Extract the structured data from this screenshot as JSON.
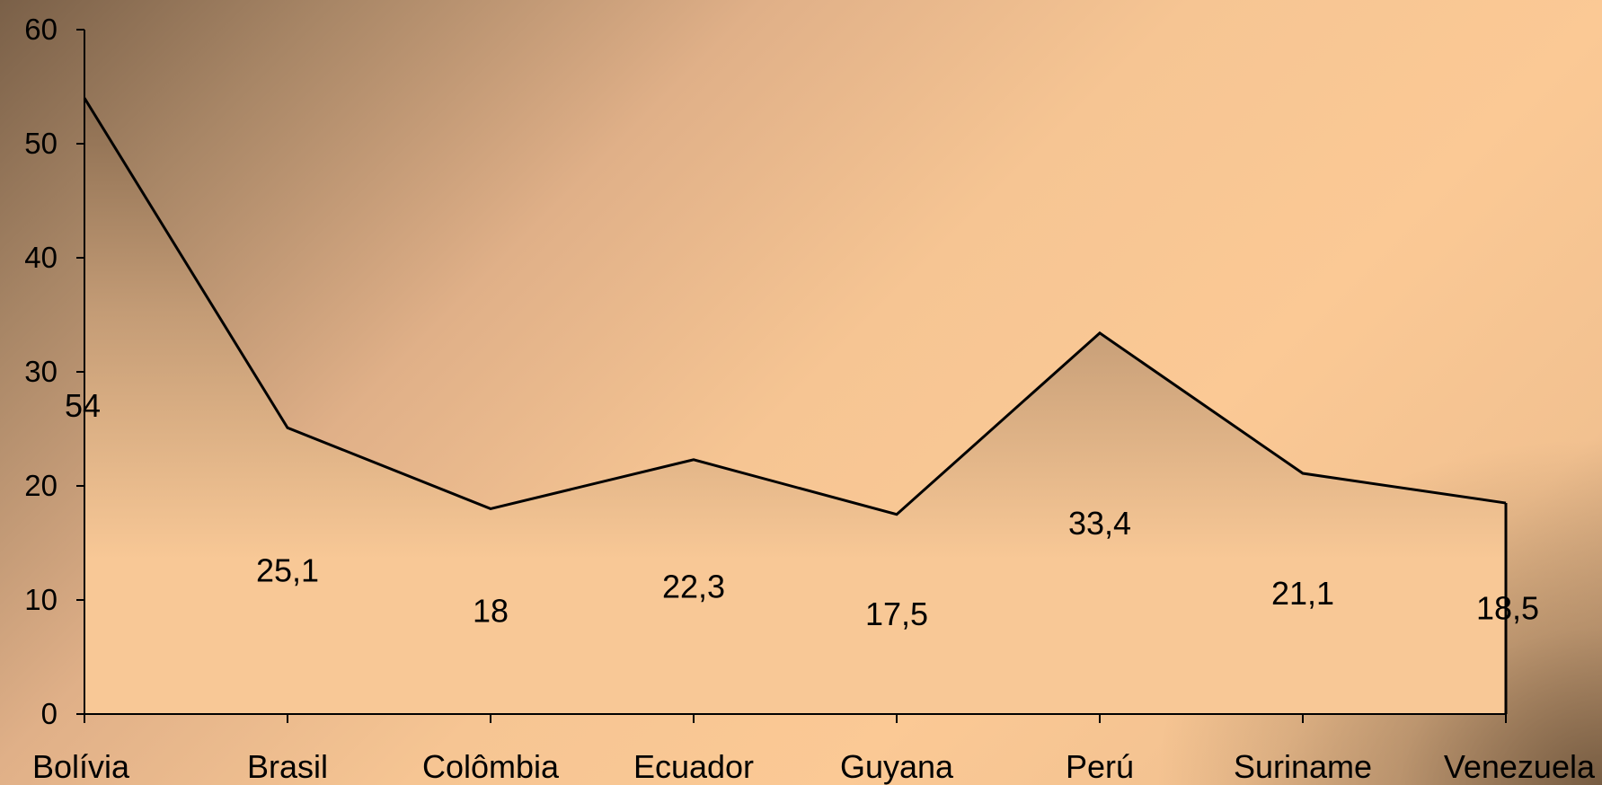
{
  "chart_data": {
    "type": "area",
    "categories": [
      "Bolívia",
      "Brasil",
      "Colômbia",
      "Ecuador",
      "Guyana",
      "Perú",
      "Suriname",
      "Venezuela"
    ],
    "values": [
      54,
      25.1,
      18,
      22.3,
      17.5,
      33.4,
      21.1,
      18.5
    ],
    "value_labels": [
      "54",
      "25,1",
      "18",
      "22,3",
      "17,5",
      "33,4",
      "21,1",
      "18,5"
    ],
    "ylim": [
      0,
      60
    ],
    "yticks": [
      "0",
      "10",
      "20",
      "30",
      "40",
      "50",
      "60"
    ],
    "grid": false,
    "legend": "none",
    "colors": {
      "line": "#000000",
      "area_dark": "#8a6c50",
      "area_light": "#f8c896"
    }
  }
}
